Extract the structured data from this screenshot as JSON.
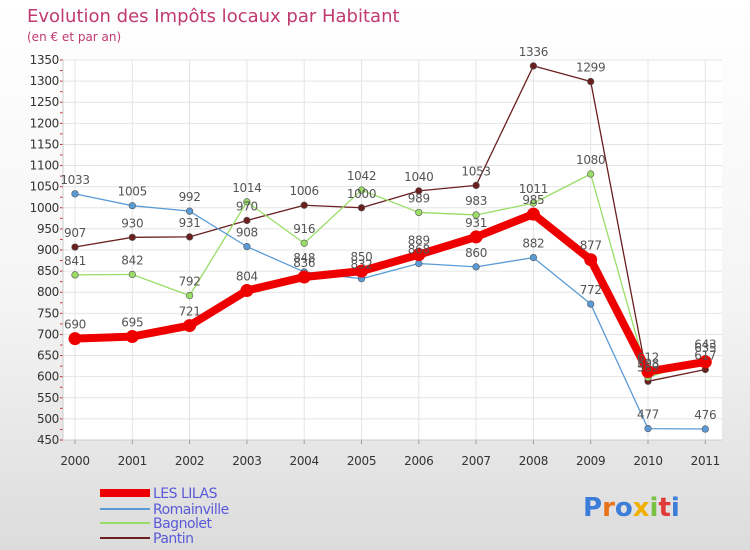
{
  "chart_data": {
    "type": "line",
    "title": "Evolution des Impôts locaux par Habitant",
    "subtitle": "(en € et par an)",
    "categories": [
      "2000",
      "2001",
      "2002",
      "2003",
      "2004",
      "2005",
      "2006",
      "2007",
      "2008",
      "2009",
      "2010",
      "2011"
    ],
    "ylim": [
      450,
      1350
    ],
    "yticks": [
      450,
      500,
      550,
      600,
      650,
      700,
      750,
      800,
      850,
      900,
      950,
      1000,
      1050,
      1100,
      1150,
      1200,
      1250,
      1300,
      1350
    ],
    "grid": true,
    "legend_position": "bottom-left",
    "series": [
      {
        "name": "LES LILAS",
        "color": "#ee0000",
        "values": [
          690,
          695,
          721,
          804,
          836,
          850,
          889,
          931,
          985,
          877,
          612,
          635
        ],
        "labels": [
          "690",
          "695",
          "721",
          "804",
          "836",
          "850",
          "889",
          "931",
          "985",
          "877",
          "612",
          "635"
        ]
      },
      {
        "name": "Romainville",
        "color": "#5b9bd5",
        "values": [
          1033,
          1005,
          992,
          908,
          848,
          832,
          868,
          860,
          882,
          772,
          477,
          476
        ],
        "labels": [
          "1033",
          "1005",
          "992",
          "908",
          "848",
          "832",
          "868",
          "860",
          "882",
          "772",
          "477",
          "476"
        ]
      },
      {
        "name": "Bagnolet",
        "color": "#99dd66",
        "values": [
          841,
          842,
          792,
          1014,
          916,
          1042,
          989,
          983,
          1011,
          1080,
          598,
          643
        ],
        "labels": [
          "841",
          "842",
          "792",
          "1014",
          "916",
          "1042",
          "989",
          "983",
          "1011",
          "1080",
          "598",
          "643"
        ]
      },
      {
        "name": "Pantin",
        "color": "#6b1f1f",
        "values": [
          907,
          930,
          931,
          970,
          1006,
          1000,
          1040,
          1053,
          1336,
          1299,
          589,
          617
        ],
        "labels": [
          "907",
          "930",
          "931",
          "970",
          "1006",
          "1000",
          "1040",
          "1053",
          "1336",
          "1299",
          "589",
          "617"
        ]
      }
    ]
  },
  "branding": {
    "logo_text": "Proxiti",
    "logo_colors": [
      "#3b7dd8",
      "#e8711a",
      "#3b7dd8",
      "#f0b000",
      "#7ac143",
      "#e03a3a",
      "#3b7dd8"
    ]
  }
}
